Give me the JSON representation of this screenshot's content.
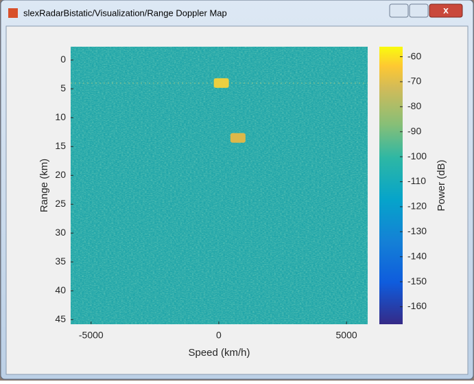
{
  "window": {
    "title": "slexRadarBistatic/Visualization/Range Doppler Map"
  },
  "chart_data": {
    "type": "heatmap",
    "x_label": "Speed (km/h)",
    "y_label": "Range (km)",
    "xlim": [
      -5800,
      5830
    ],
    "xticks": [
      -5000,
      0,
      5000
    ],
    "ylim": [
      -2.3,
      45.8
    ],
    "yticks": [
      0,
      5,
      10,
      15,
      20,
      25,
      30,
      35,
      40,
      45
    ],
    "y_reversed": true,
    "x": [
      100,
      750
    ],
    "y": [
      4,
      13.5
    ],
    "values": [
      -62,
      -80
    ],
    "colors": [
      "#f5d13a",
      "#e6b845"
    ],
    "colorbar": {
      "label": "Power (dB)",
      "lim": [
        -167,
        -56
      ],
      "ticks": [
        -160,
        -150,
        -140,
        -130,
        -120,
        -110,
        -100,
        -90,
        -80,
        -70,
        -60
      ]
    }
  }
}
